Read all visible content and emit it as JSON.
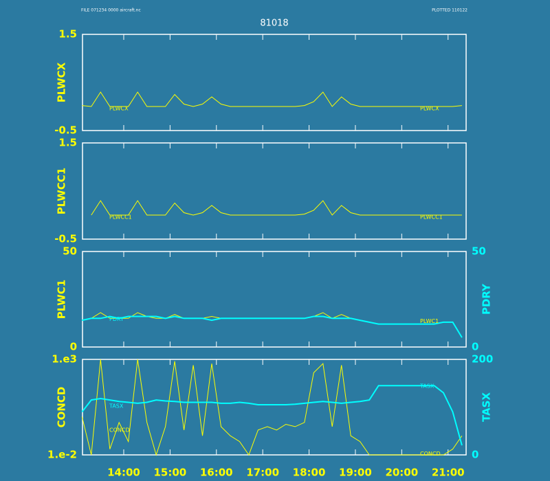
{
  "header": {
    "left": "FILE 071234   0000 aircraft.nc",
    "right": "PLOTTED 110122"
  },
  "chart_data": [
    {
      "type": "line",
      "title": "81018",
      "ylabel": "PLWCX",
      "ylim": [
        -0.5,
        1.5
      ],
      "yticks": [
        -0.5,
        1.5
      ],
      "xlim": [
        13.11,
        21.39
      ],
      "x": [
        13.1,
        13.3,
        13.5,
        13.7,
        13.9,
        14.1,
        14.3,
        14.5,
        14.7,
        14.9,
        15.1,
        15.3,
        15.5,
        15.7,
        15.9,
        16.1,
        16.3,
        16.5,
        16.7,
        16.9,
        17.1,
        17.3,
        17.5,
        17.7,
        17.9,
        18.1,
        18.3,
        18.5,
        18.7,
        18.9,
        19.1,
        19.3,
        19.5,
        19.7,
        19.9,
        20.1,
        20.3,
        20.5,
        20.7,
        20.9,
        21.1,
        21.3
      ],
      "series": [
        {
          "name": "PLWCX",
          "color": "#ffff00",
          "values": [
            0.02,
            0,
            0.3,
            0,
            0,
            0,
            0.3,
            0,
            0,
            0,
            0.25,
            0.05,
            0,
            0.05,
            0.2,
            0.05,
            0,
            0,
            0,
            0,
            0,
            0,
            0,
            0,
            0.02,
            0.1,
            0.3,
            0,
            0.2,
            0.05,
            0,
            0,
            0,
            0,
            0,
            0,
            0,
            0,
            0,
            0,
            0,
            0.02
          ]
        }
      ]
    },
    {
      "type": "line",
      "ylabel": "PLWCC1",
      "ylim": [
        -0.5,
        1.5
      ],
      "yticks": [
        -0.5,
        1.5
      ],
      "xlim": [
        13.11,
        21.39
      ],
      "x": [
        13.1,
        13.3,
        13.5,
        13.7,
        13.9,
        14.1,
        14.3,
        14.5,
        14.7,
        14.9,
        15.1,
        15.3,
        15.5,
        15.7,
        15.9,
        16.1,
        16.3,
        16.5,
        16.7,
        16.9,
        17.1,
        17.3,
        17.5,
        17.7,
        17.9,
        18.1,
        18.3,
        18.5,
        18.7,
        18.9,
        19.1,
        19.3,
        19.5,
        19.7,
        19.9,
        20.1,
        20.3,
        20.5,
        20.7,
        20.9,
        21.1,
        21.3
      ],
      "series": [
        {
          "name": "PLWCC1",
          "color": "#ffff00",
          "values": [
            null,
            0,
            0.3,
            0,
            0,
            0,
            0.3,
            0,
            0,
            0,
            0.25,
            0.05,
            0,
            0.05,
            0.2,
            0.05,
            0,
            0,
            0,
            0,
            0,
            0,
            0,
            0,
            0.02,
            0.1,
            0.3,
            0,
            0.2,
            0.05,
            0,
            0,
            0,
            0,
            0,
            0,
            0,
            0,
            0,
            0,
            0,
            0
          ]
        }
      ]
    },
    {
      "type": "line",
      "ylabel": "PLWC1",
      "y2label": "PDRY",
      "ylim": [
        0,
        50
      ],
      "yticks": [
        0,
        50
      ],
      "y2lim": [
        0,
        50
      ],
      "y2ticks": [
        0,
        50
      ],
      "xlim": [
        13.11,
        21.39
      ],
      "x": [
        13.1,
        13.3,
        13.5,
        13.7,
        13.9,
        14.1,
        14.3,
        14.5,
        14.7,
        14.9,
        15.1,
        15.3,
        15.5,
        15.7,
        15.9,
        16.1,
        16.3,
        16.5,
        16.7,
        16.9,
        17.1,
        17.3,
        17.5,
        17.7,
        17.9,
        18.1,
        18.3,
        18.5,
        18.7,
        18.9,
        19.1,
        19.3,
        19.5,
        19.7,
        19.9,
        20.1,
        20.3,
        20.5,
        20.7,
        20.9,
        21.1,
        21.3
      ],
      "series": [
        {
          "name": "PLWC1",
          "color": "#ffff00",
          "values": [
            14,
            15,
            18,
            15,
            15,
            15,
            18,
            16,
            15,
            15,
            17,
            15,
            15,
            15,
            16,
            15,
            15,
            15,
            15,
            15,
            15,
            15,
            15,
            15,
            15,
            16,
            18,
            15,
            17,
            15,
            14,
            13,
            12,
            12,
            12,
            12,
            12,
            12,
            12,
            13,
            13,
            5
          ]
        },
        {
          "name": "PDRY",
          "color": "#00ffff",
          "axis": "y2",
          "values": [
            14,
            15,
            15,
            16,
            15,
            16,
            16,
            16,
            16,
            15,
            16,
            15,
            15,
            15,
            14,
            15,
            15,
            15,
            15,
            15,
            15,
            15,
            15,
            15,
            15,
            16,
            16,
            15,
            15,
            15,
            14,
            13,
            12,
            12,
            12,
            12,
            12,
            12,
            12,
            13,
            13,
            5
          ]
        }
      ]
    },
    {
      "type": "line",
      "ylabel": "CONCD",
      "y2label": "TASX",
      "ylog": true,
      "ylim": [
        0.01,
        1000
      ],
      "yticks": [
        {
          "value": 1000,
          "label": "1.e3"
        },
        {
          "value": 0.01,
          "label": "1.e-2"
        }
      ],
      "y2lim": [
        0,
        200
      ],
      "y2ticks": [
        0,
        200
      ],
      "xlim": [
        13.11,
        21.39
      ],
      "xticks": [
        {
          "value": 14,
          "label": "14:00"
        },
        {
          "value": 15,
          "label": "15:00"
        },
        {
          "value": 16,
          "label": "16:00"
        },
        {
          "value": 17,
          "label": "17:00"
        },
        {
          "value": 18,
          "label": "18:00"
        },
        {
          "value": 19,
          "label": "19:00"
        },
        {
          "value": 20,
          "label": "20:00"
        },
        {
          "value": 21,
          "label": "21:00"
        }
      ],
      "x": [
        13.1,
        13.3,
        13.5,
        13.7,
        13.9,
        14.1,
        14.3,
        14.5,
        14.7,
        14.9,
        15.1,
        15.3,
        15.5,
        15.7,
        15.9,
        16.1,
        16.3,
        16.5,
        16.7,
        16.9,
        17.1,
        17.3,
        17.5,
        17.7,
        17.9,
        18.1,
        18.3,
        18.5,
        18.7,
        18.9,
        19.1,
        19.3,
        19.5,
        19.7,
        19.9,
        20.1,
        20.3,
        20.5,
        20.7,
        20.9,
        21.1,
        21.3
      ],
      "series": [
        {
          "name": "CONCD",
          "color": "#ffff00",
          "values": [
            1,
            0.01,
            1000,
            0.02,
            0.5,
            0.05,
            1000,
            0.5,
            0.01,
            0.3,
            800,
            0.2,
            500,
            0.1,
            600,
            0.3,
            0.1,
            0.05,
            0.01,
            0.2,
            0.3,
            0.2,
            0.4,
            0.3,
            0.5,
            200,
            600,
            0.3,
            500,
            0.1,
            0.05,
            0.01,
            0.01,
            0.01,
            0.01,
            0.01,
            0.01,
            0.01,
            0.01,
            0.01,
            0.02,
            0.1
          ]
        },
        {
          "name": "TASX",
          "color": "#00ffff",
          "axis": "y2",
          "values": [
            90,
            115,
            118,
            115,
            112,
            110,
            108,
            110,
            115,
            113,
            112,
            110,
            110,
            110,
            110,
            108,
            108,
            110,
            108,
            105,
            105,
            105,
            105,
            106,
            108,
            110,
            112,
            110,
            108,
            110,
            112,
            115,
            145,
            145,
            145,
            145,
            145,
            145,
            145,
            130,
            90,
            20
          ]
        }
      ]
    }
  ]
}
